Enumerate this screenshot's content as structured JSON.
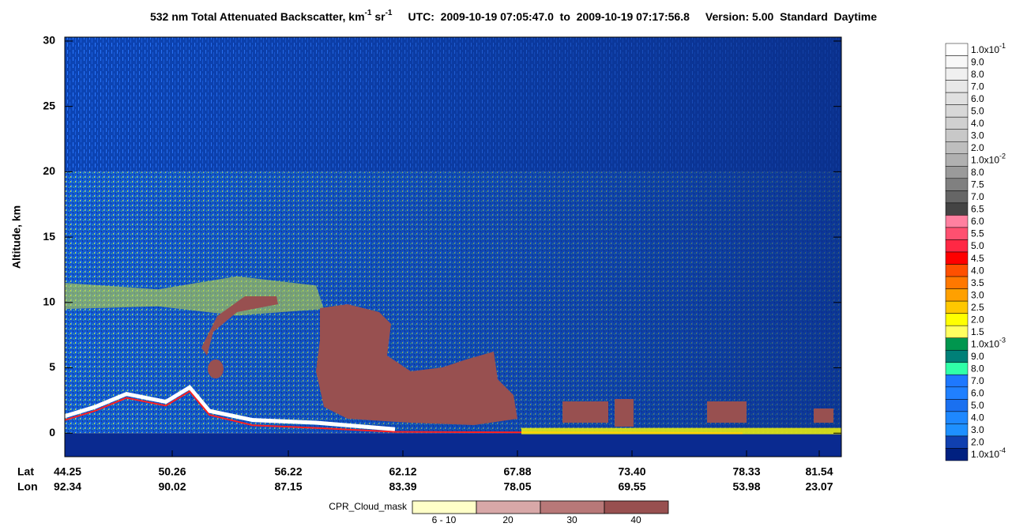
{
  "chart_data": {
    "type": "curtain",
    "title_parts": [
      "532 nm Total Attenuated Backscatter, km",
      "-1",
      " sr",
      "-1",
      "UTC:  2009-10-19 07:05:47.0  to  2009-10-19 07:17:56.8",
      "Version: 5.00  Standard  Daytime"
    ],
    "y_label": "Altitude, km",
    "ylim": [
      -1.8,
      30.3
    ],
    "yticks": [
      0,
      5,
      10,
      15,
      20,
      25,
      30
    ],
    "x_row_labels": [
      "Lat",
      "Lon"
    ],
    "lat": [
      "44.25",
      "50.26",
      "56.22",
      "62.12",
      "67.88",
      "73.40",
      "78.33",
      "81.54"
    ],
    "lon": [
      "92.34",
      "90.02",
      "87.15",
      "83.39",
      "78.05",
      "69.55",
      "53.98",
      "23.07"
    ],
    "colorbar": [
      {
        "value": 0.1,
        "label": "1.0x10",
        "exp": "-1",
        "color": "#ffffff"
      },
      {
        "value": 0.09,
        "label": "9.0",
        "color": "#f8f8f8"
      },
      {
        "value": 0.08,
        "label": "8.0",
        "color": "#f0f0f0"
      },
      {
        "value": 0.07,
        "label": "7.0",
        "color": "#e8e8e8"
      },
      {
        "value": 0.06,
        "label": "6.0",
        "color": "#e0e0e0"
      },
      {
        "value": 0.05,
        "label": "5.0",
        "color": "#d8d8d8"
      },
      {
        "value": 0.04,
        "label": "4.0",
        "color": "#d0d0d0"
      },
      {
        "value": 0.03,
        "label": "3.0",
        "color": "#c8c8c8"
      },
      {
        "value": 0.02,
        "label": "2.0",
        "color": "#bebebe"
      },
      {
        "value": 0.01,
        "label": "1.0x10",
        "exp": "-2",
        "color": "#b0b0b0"
      },
      {
        "value": 0.008,
        "label": "8.0",
        "color": "#9a9a9a"
      },
      {
        "value": 0.0075,
        "label": "7.5",
        "color": "#808080"
      },
      {
        "value": 0.007,
        "label": "7.0",
        "color": "#666666"
      },
      {
        "value": 0.0065,
        "label": "6.5",
        "color": "#444444"
      },
      {
        "value": 0.006,
        "label": "6.0",
        "color": "#ff80a0"
      },
      {
        "value": 0.0055,
        "label": "5.5",
        "color": "#ff5070"
      },
      {
        "value": 0.005,
        "label": "5.0",
        "color": "#ff2844"
      },
      {
        "value": 0.0045,
        "label": "4.5",
        "color": "#ff0000"
      },
      {
        "value": 0.004,
        "label": "4.0",
        "color": "#ff5000"
      },
      {
        "value": 0.0035,
        "label": "3.5",
        "color": "#ff7800"
      },
      {
        "value": 0.003,
        "label": "3.0",
        "color": "#ffa000"
      },
      {
        "value": 0.0025,
        "label": "2.5",
        "color": "#ffc800"
      },
      {
        "value": 0.002,
        "label": "2.0",
        "color": "#ffff00"
      },
      {
        "value": 0.0015,
        "label": "1.5",
        "color": "#ffff60"
      },
      {
        "value": 0.001,
        "label": "1.0x10",
        "exp": "-3",
        "color": "#00964e"
      },
      {
        "value": 0.0009,
        "label": "9.0",
        "color": "#008078"
      },
      {
        "value": 0.0008,
        "label": "8.0",
        "color": "#30ffa8"
      },
      {
        "value": 0.0007,
        "label": "7.0",
        "color": "#1e78ff"
      },
      {
        "value": 0.0006,
        "label": "6.0",
        "color": "#2080ff"
      },
      {
        "value": 0.0005,
        "label": "5.0",
        "color": "#1a70f0"
      },
      {
        "value": 0.0004,
        "label": "4.0",
        "color": "#1e88ff"
      },
      {
        "value": 0.0003,
        "label": "3.0",
        "color": "#1e90ff"
      },
      {
        "value": 0.0002,
        "label": "2.0",
        "color": "#1040b0"
      },
      {
        "value": 0.0001,
        "label": "1.0x10",
        "exp": "-4",
        "color": "#002080"
      }
    ],
    "mask_title": "CPR_Cloud_mask",
    "mask_categories": [
      "6 - 10",
      "20",
      "30",
      "40"
    ],
    "mask_colors": [
      "#ffffc8",
      "#d8a8a8",
      "#b87878",
      "#985050"
    ]
  }
}
